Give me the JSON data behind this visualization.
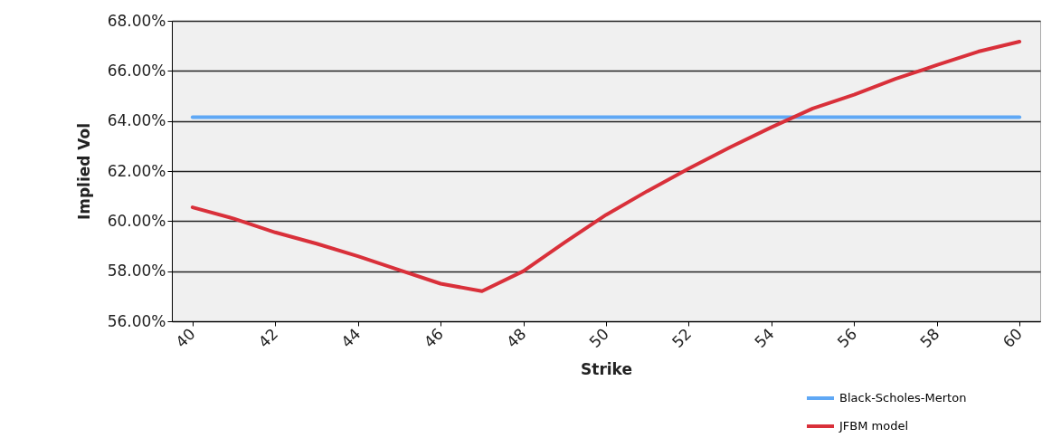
{
  "chart_data": {
    "type": "line",
    "xlabel": "Strike",
    "ylabel": "Implied Vol",
    "x": [
      40,
      41,
      42,
      43,
      44,
      45,
      46,
      47,
      48,
      49,
      50,
      51,
      52,
      53,
      54,
      55,
      56,
      57,
      58,
      59,
      60
    ],
    "series": [
      {
        "name": "Black-Scholes-Merton",
        "color": "#5fa8f5",
        "values": [
          64.15,
          64.15,
          64.15,
          64.15,
          64.15,
          64.15,
          64.15,
          64.15,
          64.15,
          64.15,
          64.15,
          64.15,
          64.15,
          64.15,
          64.15,
          64.15,
          64.15,
          64.15,
          64.15,
          64.15,
          64.15
        ]
      },
      {
        "name": "JFBM model",
        "color": "#d9303a",
        "values": [
          60.55,
          60.1,
          59.55,
          59.1,
          58.6,
          58.05,
          57.5,
          57.2,
          58.0,
          59.15,
          60.25,
          61.2,
          62.1,
          62.95,
          63.75,
          64.5,
          65.05,
          65.68,
          66.23,
          66.77,
          67.17
        ]
      }
    ],
    "xlim": [
      39.5,
      60.5
    ],
    "xticks": [
      40,
      42,
      44,
      46,
      48,
      50,
      52,
      54,
      56,
      58,
      60
    ],
    "ylim": [
      56,
      68
    ],
    "yticks": [
      {
        "value": 56,
        "label": "56.00%"
      },
      {
        "value": 58,
        "label": "58.00%"
      },
      {
        "value": 60,
        "label": "60.00%"
      },
      {
        "value": 62,
        "label": "62.00%"
      },
      {
        "value": 64,
        "label": "64.00%"
      },
      {
        "value": 66,
        "label": "66.00%"
      },
      {
        "value": 68,
        "label": "68.00%"
      }
    ],
    "grid": "y",
    "legend": "bottom right",
    "line_style": "solid",
    "marker": "none"
  }
}
